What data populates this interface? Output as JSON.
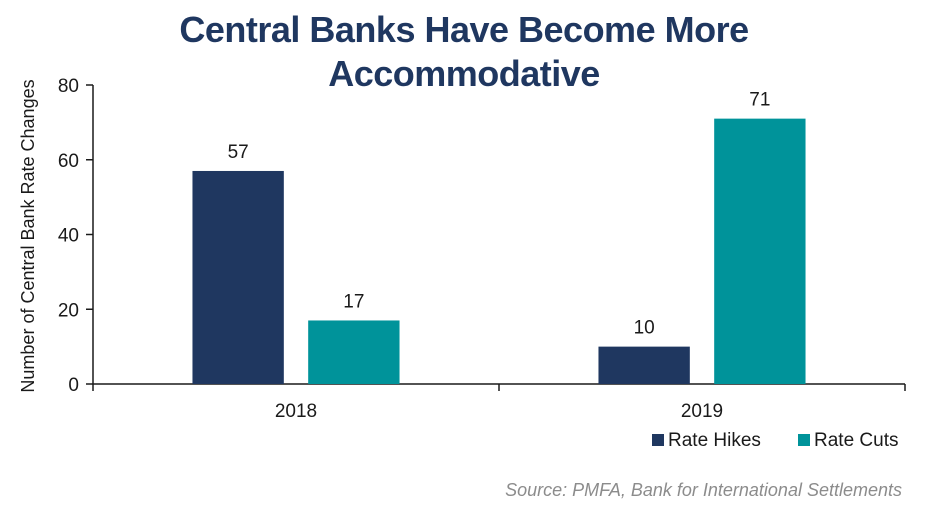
{
  "chart_data": {
    "type": "bar",
    "title_lines": [
      "Central Banks Have Become More",
      "Accommodative"
    ],
    "ylabel": "Number of Central Bank Rate Changes",
    "xlabel": "",
    "categories": [
      "2018",
      "2019"
    ],
    "ylim": [
      0,
      80
    ],
    "yticks": [
      0,
      20,
      40,
      60,
      80
    ],
    "grid": false,
    "legend_position": "bottom-right",
    "series": [
      {
        "name": "Rate Hikes",
        "values": [
          57,
          10
        ],
        "color": "#1f3760"
      },
      {
        "name": "Rate Cuts",
        "values": [
          17,
          71
        ],
        "color": "#00939a"
      }
    ]
  },
  "source": "Source: PMFA, Bank for International Settlements"
}
